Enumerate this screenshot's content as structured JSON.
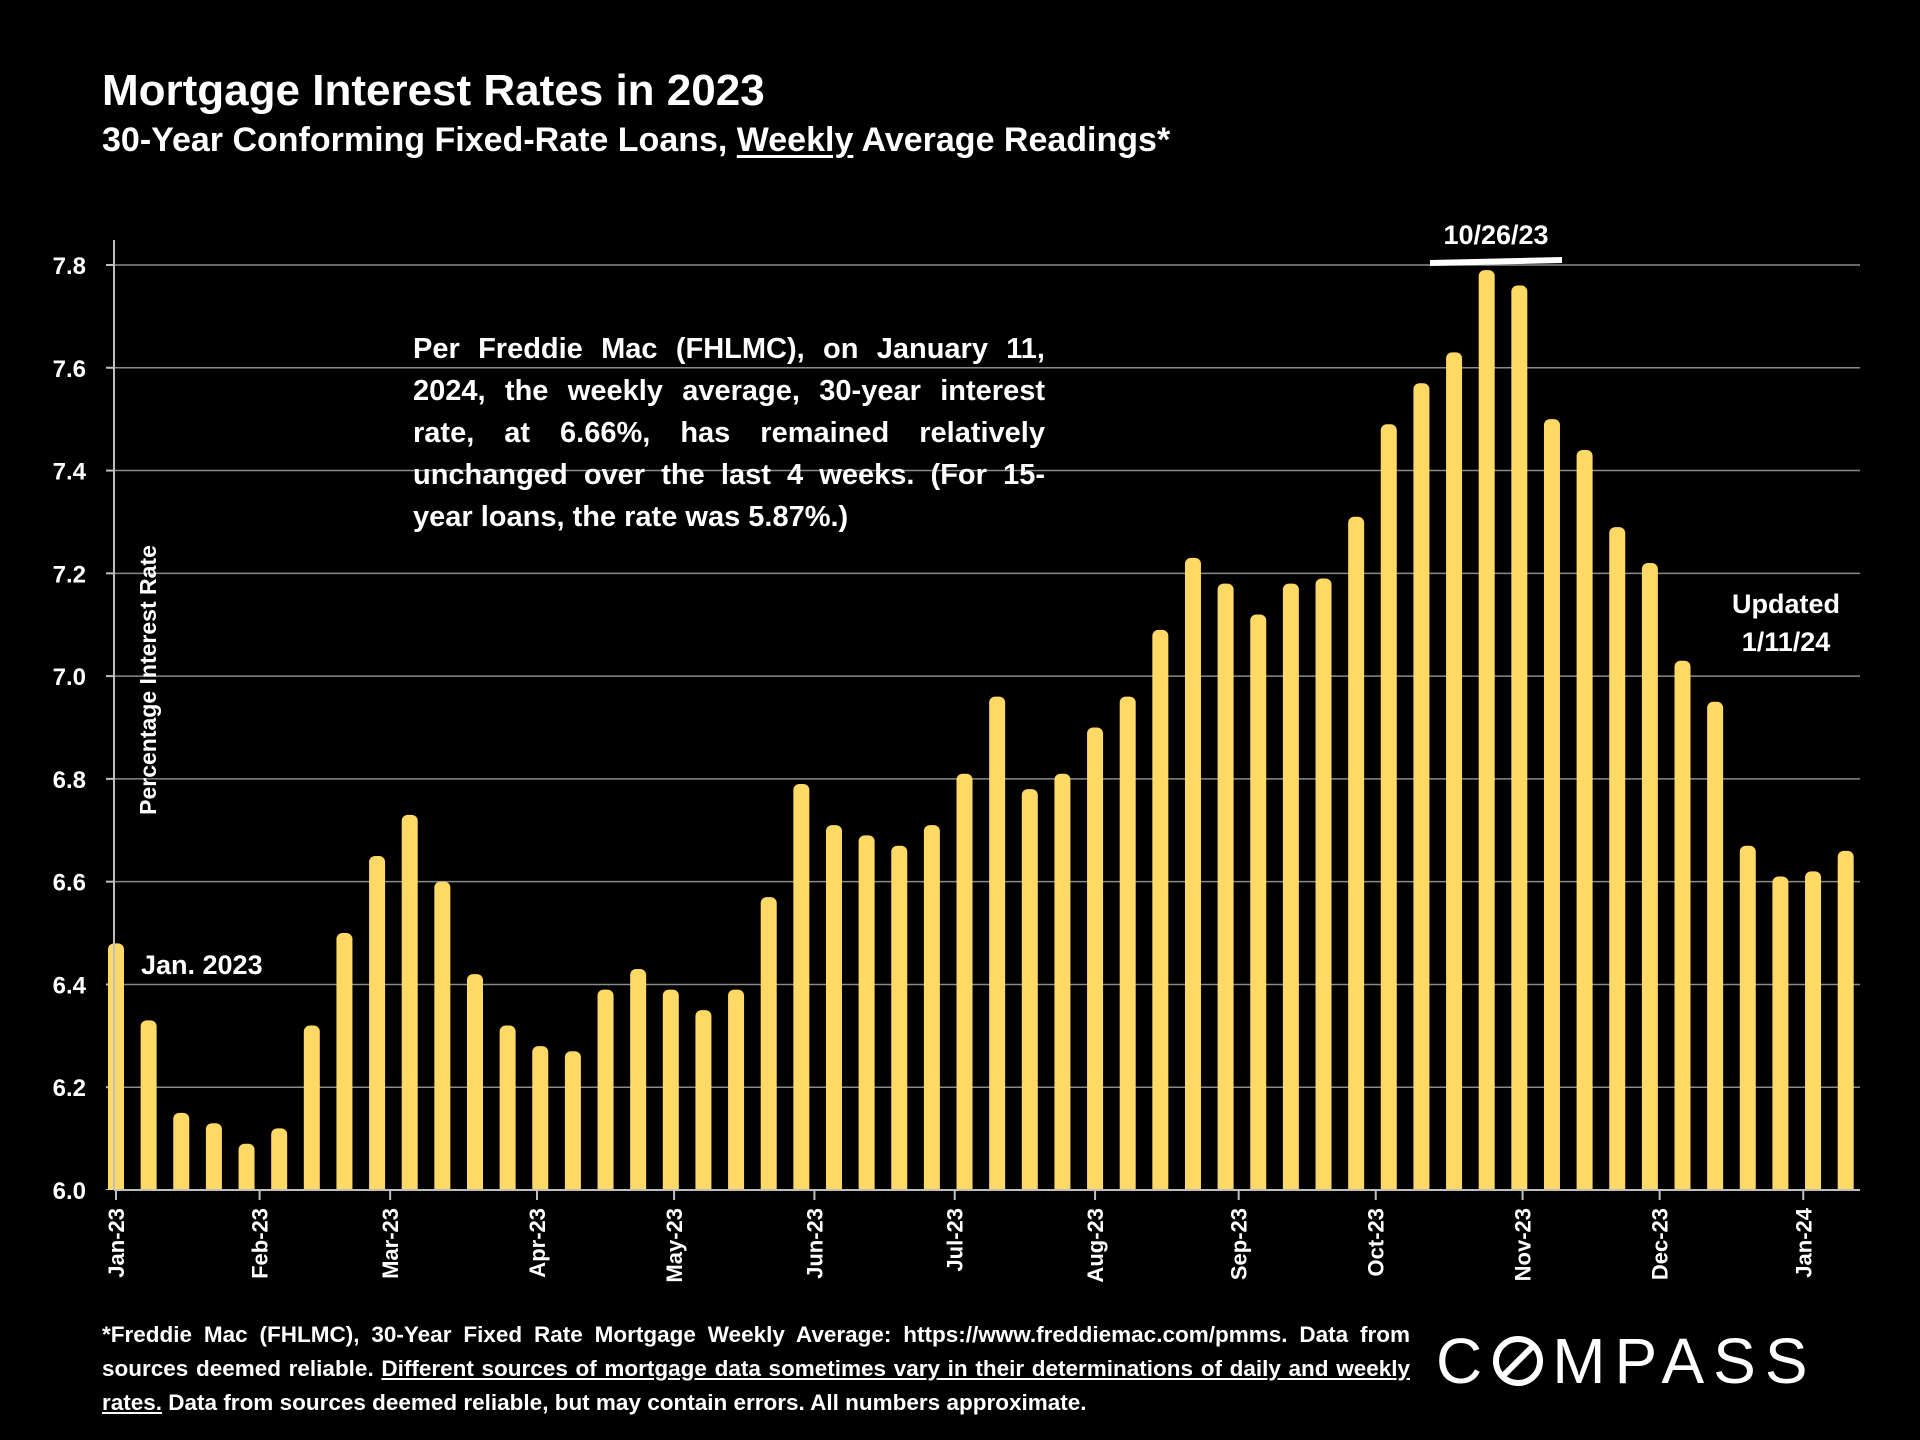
{
  "header": {
    "title": "Mortgage Interest Rates in 2023",
    "subtitle_before": "30-Year Conforming Fixed-Rate Loans, ",
    "subtitle_underlined": "Weekly",
    "subtitle_after": " Average Readings*"
  },
  "note": "Per Freddie Mac (FHLMC), on January 11, 2024, the weekly average, 30-year interest rate, at 6.66%, has remained relatively unchanged over the last 4 weeks. (For 15-year loans, the rate was 5.87%.)",
  "chart_data": {
    "type": "bar",
    "title": "Mortgage Interest Rates in 2023",
    "ylabel": "Percentage Interest  Rate",
    "xlabel": "",
    "ylim": [
      6.0,
      7.8
    ],
    "yticks": [
      "6.0",
      "6.2",
      "6.4",
      "6.6",
      "6.8",
      "7.0",
      "7.2",
      "7.4",
      "7.6",
      "7.8"
    ],
    "grid": true,
    "bar_color": "#FFD966",
    "x_tick_labels": [
      "Jan-23",
      "Feb-23",
      "Mar-23",
      "Apr-23",
      "May-23",
      "Jun-23",
      "Jul-23",
      "Aug-23",
      "Sep-23",
      "Oct-23",
      "Nov-23",
      "Dec-23",
      "Jan-24"
    ],
    "x_tick_week_index": [
      0,
      4.4,
      8.4,
      12.9,
      17.1,
      21.4,
      25.7,
      30.0,
      34.4,
      38.6,
      43.1,
      47.3,
      51.7
    ],
    "values": [
      6.48,
      6.33,
      6.15,
      6.13,
      6.09,
      6.12,
      6.32,
      6.5,
      6.65,
      6.73,
      6.6,
      6.42,
      6.32,
      6.28,
      6.27,
      6.39,
      6.43,
      6.39,
      6.35,
      6.39,
      6.57,
      6.79,
      6.71,
      6.69,
      6.67,
      6.71,
      6.81,
      6.96,
      6.78,
      6.81,
      6.9,
      6.96,
      7.09,
      7.23,
      7.18,
      7.12,
      7.18,
      7.19,
      7.31,
      7.49,
      7.57,
      7.63,
      7.79,
      7.76,
      7.5,
      7.44,
      7.29,
      7.22,
      7.03,
      6.95,
      6.67,
      6.61,
      6.62,
      6.66
    ],
    "annotations": {
      "start": "Jan. 2023",
      "peak": "10/26/23",
      "updated_line1": "Updated",
      "updated_line2": "1/11/24"
    }
  },
  "footnote": {
    "line1": "*Freddie Mac (FHLMC), 30-Year Fixed Rate Mortgage Weekly Average:  https://www.freddiemac.com/pmms. Data from sources deemed reliable. ",
    "underlined": "Different sources of mortgage data sometimes vary in their determinations of daily and weekly rates.",
    "line2": " Data from sources deemed reliable, but may contain errors. All numbers approximate."
  },
  "logo": {
    "before": "C",
    "after": "MPASS"
  }
}
